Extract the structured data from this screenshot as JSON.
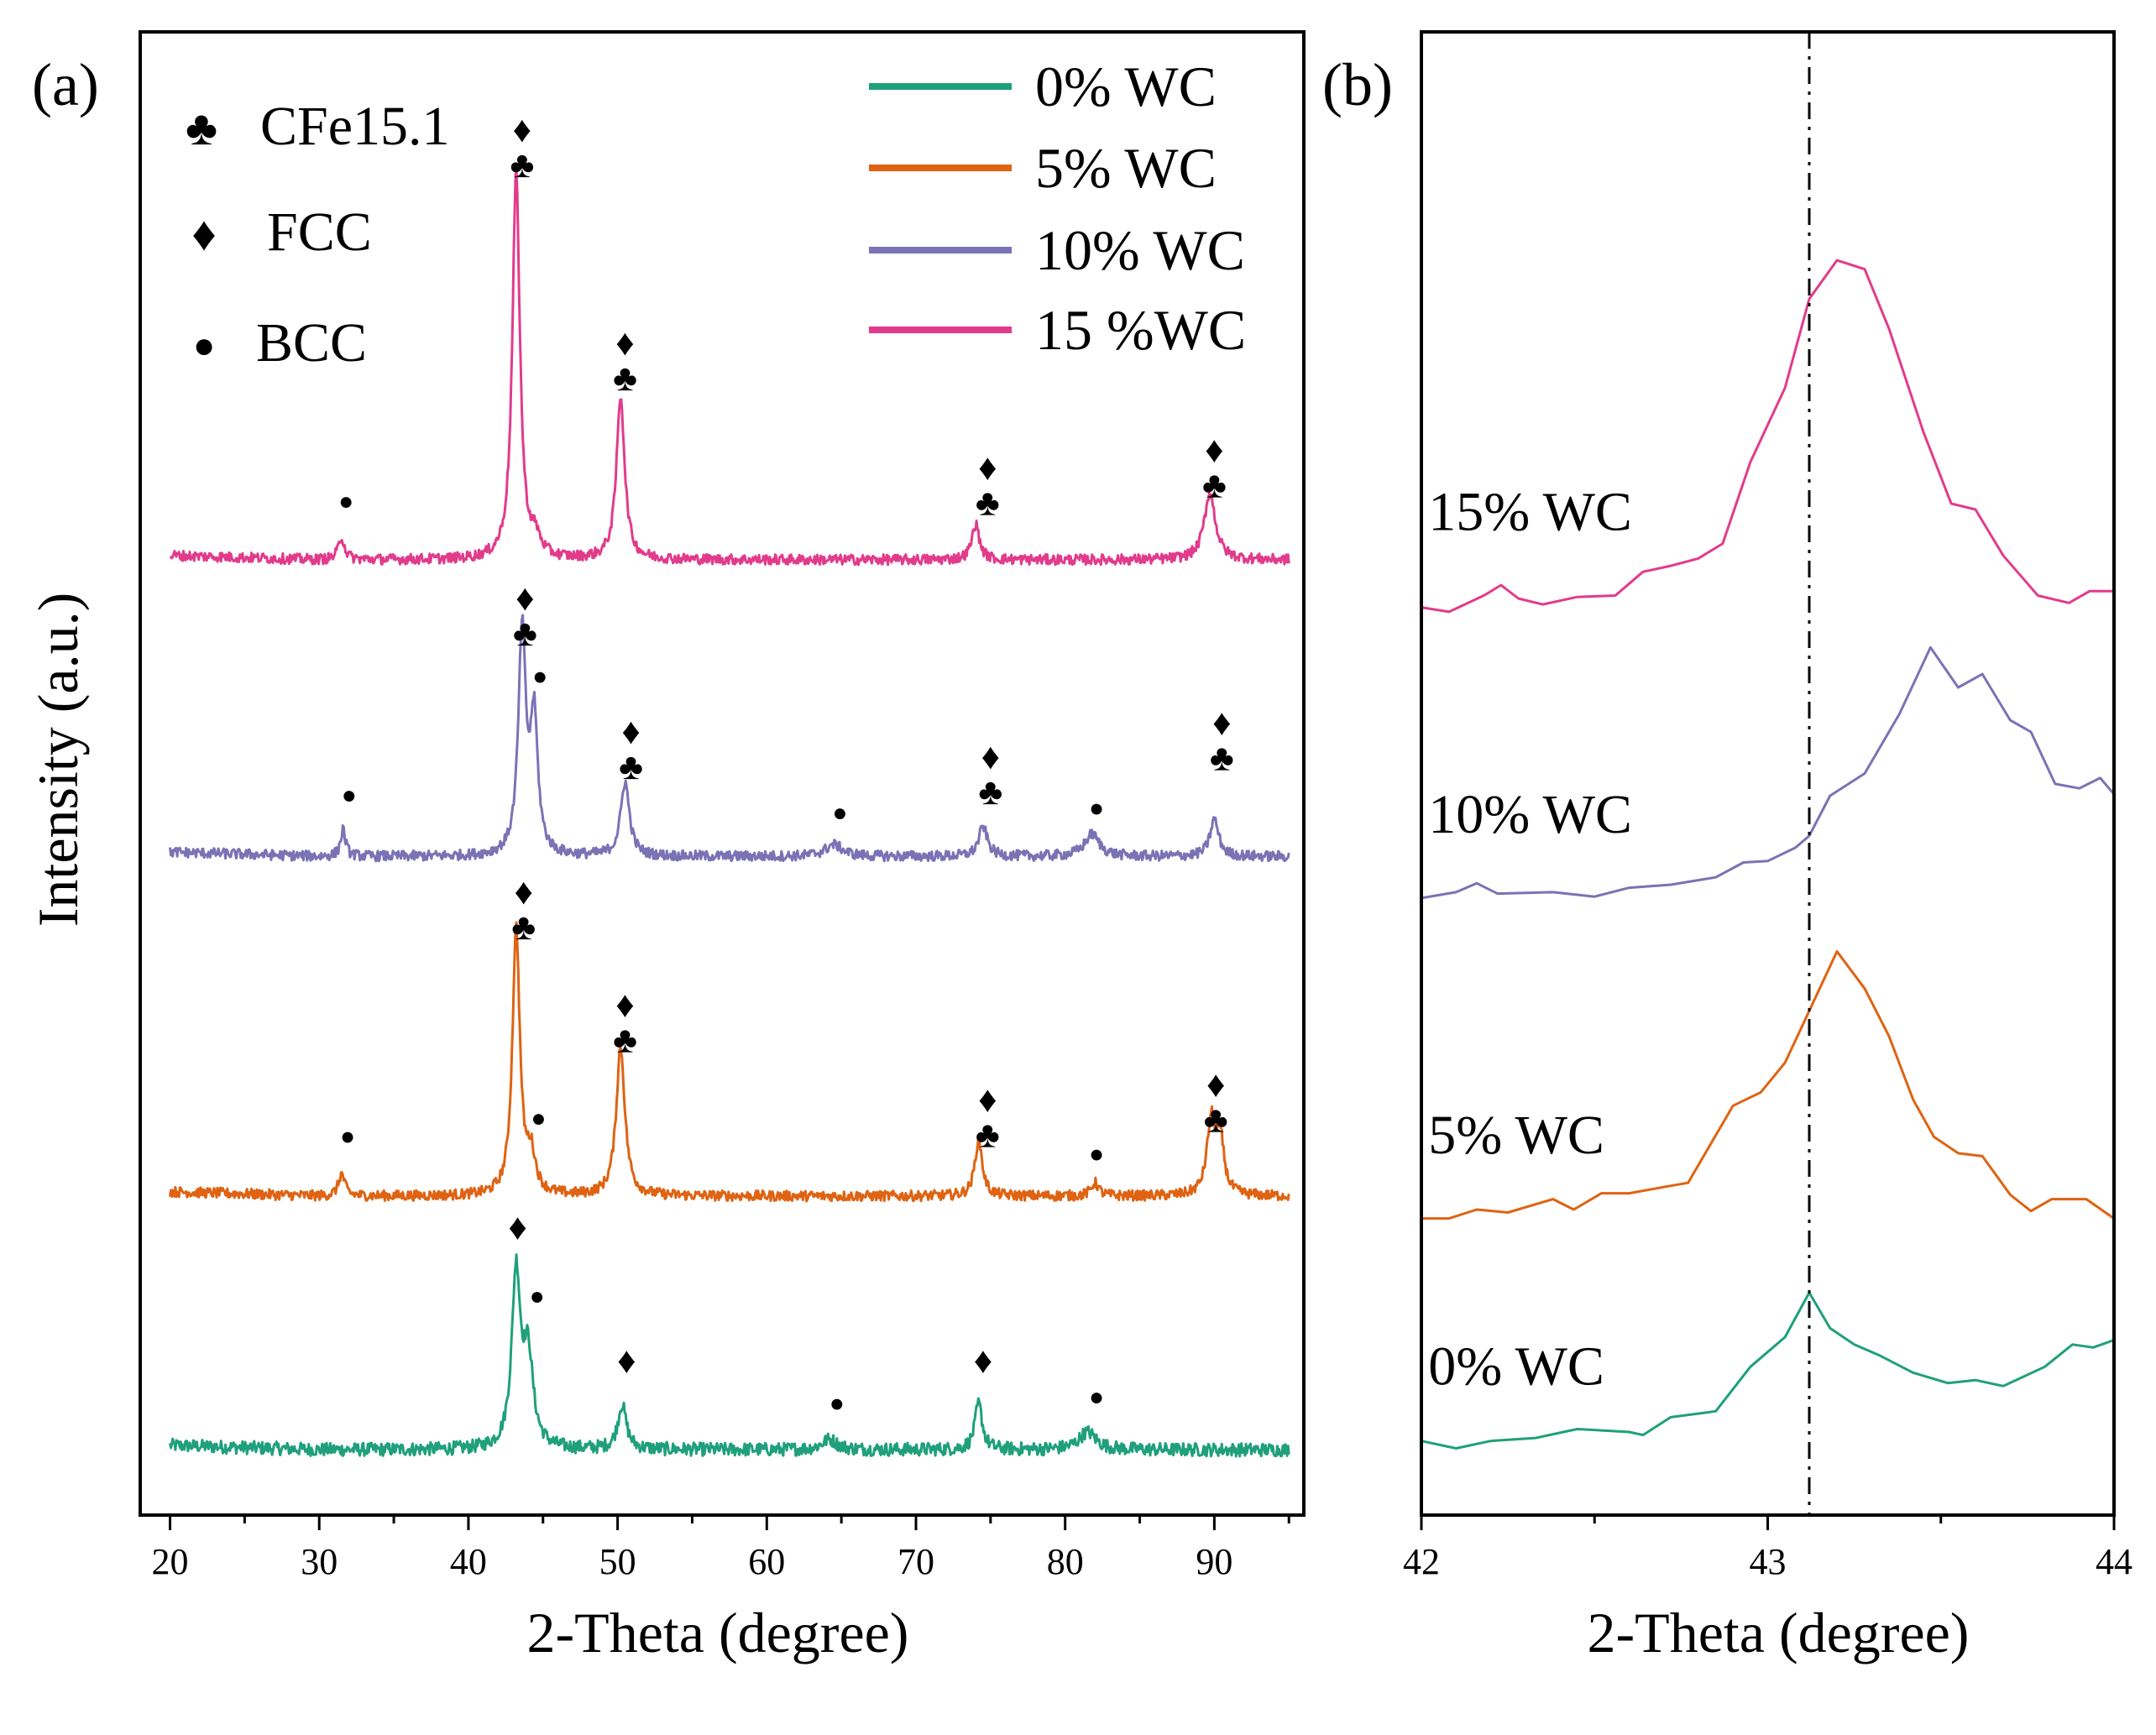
{
  "chart_data": [
    {
      "type": "line",
      "panel_label": "(a)",
      "xlabel": "2-Theta (degree)",
      "ylabel": "Intensity (a.u.)",
      "xlim": [
        18,
        96
      ],
      "ylim": [
        0,
        100
      ],
      "xticks": [
        "20",
        "30",
        "40",
        "50",
        "60",
        "70",
        "80",
        "90"
      ],
      "y_ticks_shown": false,
      "legend": {
        "placement": "top-right",
        "entries": [
          {
            "label": "0% WC",
            "color": "#1fa07a"
          },
          {
            "label": "5% WC",
            "color": "#df6312"
          },
          {
            "label": "10% WC",
            "color": "#7b72b5"
          },
          {
            "label": "15 %WC",
            "color": "#e23b8c"
          }
        ]
      },
      "phase_legend": {
        "placement": "top-left",
        "entries": [
          {
            "symbol": "♣",
            "label": "CFe15.1"
          },
          {
            "symbol": "♦",
            "label": "FCC"
          },
          {
            "symbol": "●",
            "label": "BCC"
          }
        ]
      },
      "series": [
        {
          "name": "0% WC",
          "color": "#1fa07a",
          "baseline": 4.4,
          "noise": 0.45,
          "peaks": [
            {
              "x": 43.2,
              "h": 11.7,
              "w": 0.35
            },
            {
              "x": 44.0,
              "h": 6.0,
              "w": 0.4
            },
            {
              "x": 50.3,
              "h": 3.0,
              "w": 0.35
            },
            {
              "x": 64.2,
              "h": 0.7,
              "w": 0.6
            },
            {
              "x": 74.2,
              "h": 3.1,
              "w": 0.3
            },
            {
              "x": 81.5,
              "h": 1.2,
              "w": 0.7
            }
          ]
        },
        {
          "name": "5% WC",
          "color": "#df6312",
          "baseline": 21.5,
          "noise": 0.35,
          "peaks": [
            {
              "x": 31.5,
              "h": 1.5,
              "w": 0.25
            },
            {
              "x": 43.2,
              "h": 18.0,
              "w": 0.3
            },
            {
              "x": 44.2,
              "h": 2.5,
              "w": 0.35
            },
            {
              "x": 50.2,
              "h": 10.0,
              "w": 0.35
            },
            {
              "x": 74.2,
              "h": 3.8,
              "w": 0.3
            },
            {
              "x": 82.0,
              "h": 0.9,
              "w": 0.3
            },
            {
              "x": 89.8,
              "h": 5.0,
              "w": 0.35
            },
            {
              "x": 90.4,
              "h": 3.5,
              "w": 0.3
            }
          ]
        },
        {
          "name": "10% WC",
          "color": "#7b72b5",
          "baseline": 44.4,
          "noise": 0.35,
          "peaks": [
            {
              "x": 31.6,
              "h": 1.8,
              "w": 0.2
            },
            {
              "x": 43.6,
              "h": 15.0,
              "w": 0.3
            },
            {
              "x": 44.4,
              "h": 9.0,
              "w": 0.3
            },
            {
              "x": 50.5,
              "h": 5.0,
              "w": 0.35
            },
            {
              "x": 64.5,
              "h": 0.8,
              "w": 0.7
            },
            {
              "x": 74.5,
              "h": 2.0,
              "w": 0.35
            },
            {
              "x": 81.8,
              "h": 1.5,
              "w": 0.6
            },
            {
              "x": 90.0,
              "h": 2.5,
              "w": 0.35
            }
          ]
        },
        {
          "name": "15 %WC",
          "color": "#e23b8c",
          "baseline": 64.4,
          "noise": 0.35,
          "peaks": [
            {
              "x": 31.5,
              "h": 1.5,
              "w": 0.25
            },
            {
              "x": 43.2,
              "h": 26.0,
              "w": 0.3
            },
            {
              "x": 44.5,
              "h": 1.2,
              "w": 0.4
            },
            {
              "x": 50.2,
              "h": 11.0,
              "w": 0.33
            },
            {
              "x": 74.0,
              "h": 2.4,
              "w": 0.3
            },
            {
              "x": 89.7,
              "h": 4.5,
              "w": 0.45
            }
          ]
        }
      ],
      "phase_markers": [
        {
          "x": 31.8,
          "y": 67.8,
          "symbols": "●"
        },
        {
          "x": 43.6,
          "y": 92.6,
          "symbols": "♦♣"
        },
        {
          "x": 50.5,
          "y": 78.2,
          "symbols": "♦♣"
        },
        {
          "x": 74.8,
          "y": 69.8,
          "symbols": "♦♣"
        },
        {
          "x": 90.0,
          "y": 71.0,
          "symbols": "♦♣"
        },
        {
          "x": 32.0,
          "y": 48.0,
          "symbols": "●"
        },
        {
          "x": 43.8,
          "y": 61.0,
          "symbols": "♦♣"
        },
        {
          "x": 44.8,
          "y": 56.0,
          "symbols": "●"
        },
        {
          "x": 50.9,
          "y": 52.0,
          "symbols": "♦♣"
        },
        {
          "x": 64.9,
          "y": 46.8,
          "symbols": "●"
        },
        {
          "x": 75.0,
          "y": 50.3,
          "symbols": "♦♣"
        },
        {
          "x": 82.1,
          "y": 47.1,
          "symbols": "●"
        },
        {
          "x": 90.5,
          "y": 52.6,
          "symbols": "♦♣"
        },
        {
          "x": 31.9,
          "y": 25.0,
          "symbols": "●"
        },
        {
          "x": 43.7,
          "y": 41.2,
          "symbols": "♦♣"
        },
        {
          "x": 44.7,
          "y": 26.2,
          "symbols": "●"
        },
        {
          "x": 50.5,
          "y": 33.6,
          "symbols": "♦♣"
        },
        {
          "x": 74.8,
          "y": 27.2,
          "symbols": "♦♣"
        },
        {
          "x": 82.1,
          "y": 23.8,
          "symbols": "●"
        },
        {
          "x": 90.1,
          "y": 28.2,
          "symbols": "♦♣"
        },
        {
          "x": 43.3,
          "y": 18.6,
          "symbols": "♦"
        },
        {
          "x": 44.6,
          "y": 14.2,
          "symbols": "●"
        },
        {
          "x": 50.6,
          "y": 9.6,
          "symbols": "♦"
        },
        {
          "x": 64.7,
          "y": 7.0,
          "symbols": "●"
        },
        {
          "x": 74.5,
          "y": 9.6,
          "symbols": "♦"
        },
        {
          "x": 82.1,
          "y": 7.4,
          "symbols": "●"
        }
      ]
    },
    {
      "type": "line",
      "panel_label": "(b)",
      "xlabel": "2-Theta (degree)",
      "xlim": [
        42,
        44
      ],
      "ylim": [
        0,
        100
      ],
      "xticks": [
        "42",
        "43",
        "44"
      ],
      "reference_line_x": 43.12,
      "series": [
        {
          "name": "0% WC",
          "label": "0% WC",
          "color": "#1fa07a",
          "label_anchor": {
            "x": 42.02,
            "y": 8.8
          },
          "points": [
            [
              42.0,
              5.0
            ],
            [
              42.1,
              4.5
            ],
            [
              42.2,
              5.0
            ],
            [
              42.33,
              5.2
            ],
            [
              42.45,
              5.8
            ],
            [
              42.6,
              5.6
            ],
            [
              42.64,
              5.4
            ],
            [
              42.72,
              6.6
            ],
            [
              42.85,
              7.0
            ],
            [
              42.95,
              10.0
            ],
            [
              43.05,
              12.0
            ],
            [
              43.12,
              15.0
            ],
            [
              43.18,
              12.6
            ],
            [
              43.25,
              11.5
            ],
            [
              43.32,
              10.8
            ],
            [
              43.42,
              9.6
            ],
            [
              43.52,
              8.9
            ],
            [
              43.6,
              9.1
            ],
            [
              43.68,
              8.7
            ],
            [
              43.8,
              10.0
            ],
            [
              43.88,
              11.5
            ],
            [
              43.94,
              11.3
            ],
            [
              44.0,
              11.8
            ]
          ]
        },
        {
          "name": "5% WC",
          "label": "5% WC",
          "color": "#df6312",
          "label_anchor": {
            "x": 42.02,
            "y": 24.4
          },
          "points": [
            [
              42.0,
              20.0
            ],
            [
              42.08,
              20.0
            ],
            [
              42.16,
              20.6
            ],
            [
              42.25,
              20.4
            ],
            [
              42.38,
              21.3
            ],
            [
              42.44,
              20.6
            ],
            [
              42.52,
              21.7
            ],
            [
              42.6,
              21.7
            ],
            [
              42.72,
              22.2
            ],
            [
              42.77,
              22.4
            ],
            [
              42.9,
              27.6
            ],
            [
              42.98,
              28.5
            ],
            [
              43.05,
              30.5
            ],
            [
              43.1,
              33.0
            ],
            [
              43.2,
              38.0
            ],
            [
              43.28,
              35.5
            ],
            [
              43.35,
              32.3
            ],
            [
              43.42,
              28.0
            ],
            [
              43.48,
              25.5
            ],
            [
              43.55,
              24.4
            ],
            [
              43.62,
              24.2
            ],
            [
              43.7,
              21.6
            ],
            [
              43.76,
              20.5
            ],
            [
              43.82,
              21.3
            ],
            [
              43.92,
              21.3
            ],
            [
              44.0,
              20.0
            ]
          ]
        },
        {
          "name": "10% WC",
          "label": "10% WC",
          "color": "#7b72b5",
          "label_anchor": {
            "x": 42.02,
            "y": 46.0
          },
          "points": [
            [
              42.0,
              41.6
            ],
            [
              42.1,
              42.0
            ],
            [
              42.16,
              42.6
            ],
            [
              42.22,
              41.9
            ],
            [
              42.38,
              42.0
            ],
            [
              42.5,
              41.7
            ],
            [
              42.6,
              42.3
            ],
            [
              42.72,
              42.5
            ],
            [
              42.85,
              43.0
            ],
            [
              42.93,
              44.0
            ],
            [
              43.0,
              44.1
            ],
            [
              43.08,
              45.0
            ],
            [
              43.12,
              45.8
            ],
            [
              43.18,
              48.5
            ],
            [
              43.28,
              50.0
            ],
            [
              43.38,
              54.0
            ],
            [
              43.47,
              58.5
            ],
            [
              43.55,
              55.8
            ],
            [
              43.62,
              56.7
            ],
            [
              43.7,
              53.6
            ],
            [
              43.76,
              52.8
            ],
            [
              43.83,
              49.3
            ],
            [
              43.9,
              49.0
            ],
            [
              43.96,
              49.7
            ],
            [
              44.0,
              48.6
            ]
          ]
        },
        {
          "name": "15% WC",
          "label": "15% WC",
          "color": "#e23b8c",
          "label_anchor": {
            "x": 42.02,
            "y": 66.4
          },
          "points": [
            [
              42.0,
              61.2
            ],
            [
              42.08,
              60.9
            ],
            [
              42.18,
              62.0
            ],
            [
              42.23,
              62.7
            ],
            [
              42.28,
              61.8
            ],
            [
              42.35,
              61.4
            ],
            [
              42.45,
              61.9
            ],
            [
              42.56,
              62.0
            ],
            [
              42.64,
              63.6
            ],
            [
              42.72,
              64.0
            ],
            [
              42.8,
              64.5
            ],
            [
              42.87,
              65.5
            ],
            [
              42.95,
              71.0
            ],
            [
              43.05,
              76.0
            ],
            [
              43.12,
              82.0
            ],
            [
              43.2,
              84.6
            ],
            [
              43.28,
              84.0
            ],
            [
              43.35,
              80.0
            ],
            [
              43.45,
              73.0
            ],
            [
              43.53,
              68.2
            ],
            [
              43.6,
              67.8
            ],
            [
              43.68,
              64.7
            ],
            [
              43.78,
              62.0
            ],
            [
              43.87,
              61.5
            ],
            [
              43.93,
              62.3
            ],
            [
              44.0,
              62.3
            ]
          ]
        }
      ]
    }
  ]
}
